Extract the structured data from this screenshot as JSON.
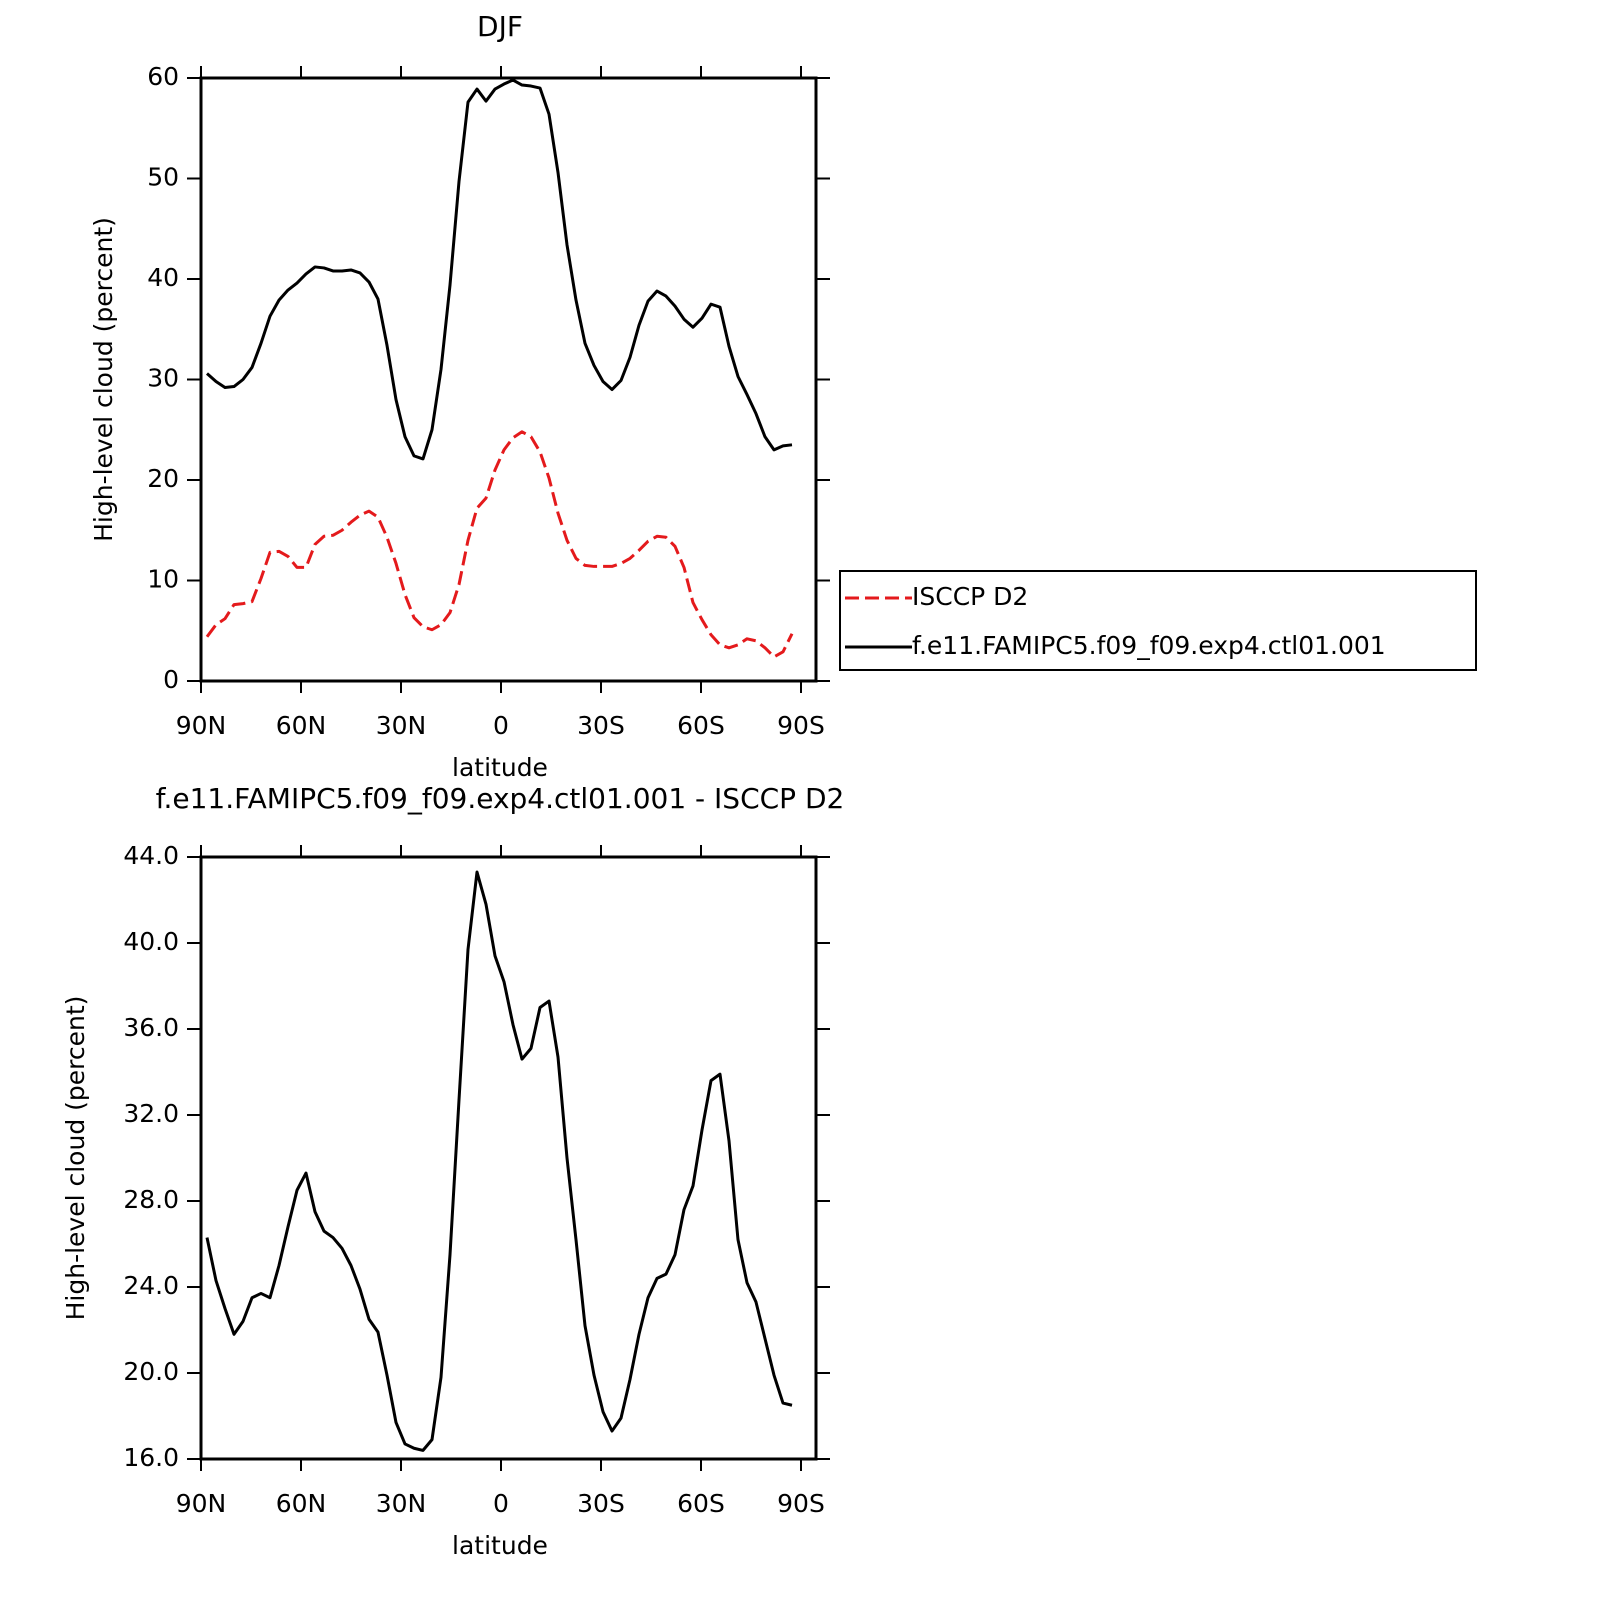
{
  "chart_data": [
    {
      "type": "line",
      "title": "DJF",
      "xlabel": "latitude",
      "ylabel": "High-level cloud (percent)",
      "x": [
        88.2,
        85.5,
        82.8,
        80.1,
        77.4,
        74.7,
        72,
        69.3,
        66.6,
        63.9,
        61.2,
        58.5,
        55.8,
        53.1,
        50.4,
        47.7,
        45,
        42.3,
        39.6,
        36.9,
        34.2,
        31.5,
        28.8,
        26.1,
        23.4,
        20.7,
        18,
        15.3,
        12.6,
        9.9,
        7.2,
        4.5,
        1.8,
        -0.9,
        -3.6,
        -6.3,
        -9,
        -11.7,
        -14.4,
        -17.1,
        -19.8,
        -22.5,
        -25.2,
        -27.9,
        -30.6,
        -33.3,
        -36,
        -38.7,
        -41.4,
        -44.1,
        -46.8,
        -49.5,
        -52.2,
        -54.9,
        -57.6,
        -60.3,
        -63,
        -65.7,
        -68.4,
        -71.1,
        -73.8,
        -76.5,
        -79.2,
        -81.9,
        -84.6,
        -87.3
      ],
      "series": [
        {
          "name": "ISCCP D2",
          "color": "#e41a1c",
          "line_style": "dashed",
          "values": [
            4.4,
            5.6,
            6.2,
            7.6,
            7.7,
            7.9,
            10.2,
            12.8,
            12.9,
            12.4,
            11.3,
            11.3,
            13.6,
            14.4,
            14.5,
            15.0,
            15.8,
            16.5,
            16.9,
            16.3,
            14.3,
            11.7,
            8.6,
            6.3,
            5.4,
            5.1,
            5.6,
            6.8,
            9.6,
            14.0,
            17.2,
            18.2,
            21.0,
            23.0,
            24.2,
            24.8,
            24.3,
            22.8,
            20.2,
            16.7,
            14.0,
            12.2,
            11.5,
            11.4,
            11.4,
            11.4,
            11.7,
            12.2,
            13.0,
            13.9,
            14.4,
            14.3,
            13.4,
            11.3,
            7.8,
            6.1,
            4.6,
            3.6,
            3.3,
            3.6,
            4.2,
            4.0,
            3.3,
            2.4,
            2.9,
            4.7
          ]
        },
        {
          "name": "f.e11.FAMIPC5.f09_f09.exp4.ctl01.001",
          "color": "#000000",
          "line_style": "solid",
          "values": [
            30.6,
            29.8,
            29.2,
            29.3,
            30.0,
            31.2,
            33.6,
            36.3,
            37.9,
            38.9,
            39.6,
            40.5,
            41.2,
            41.1,
            40.8,
            40.8,
            40.9,
            40.6,
            39.7,
            38.0,
            33.4,
            28.0,
            24.3,
            22.4,
            22.1,
            25.0,
            31.0,
            39.4,
            49.7,
            57.6,
            58.9,
            57.7,
            58.9,
            59.4,
            59.8,
            59.3,
            59.2,
            59.0,
            56.4,
            50.6,
            43.4,
            37.9,
            33.6,
            31.4,
            29.8,
            29.0,
            29.9,
            32.2,
            35.4,
            37.8,
            38.8,
            38.3,
            37.3,
            36.0,
            35.2,
            36.1,
            37.5,
            37.2,
            33.3,
            30.3,
            28.5,
            26.6,
            24.3,
            23.0,
            23.4,
            23.5
          ]
        }
      ],
      "xlim": [
        90,
        -94.5
      ],
      "xticks": [
        {
          "value": 90,
          "label": "90N"
        },
        {
          "value": 60,
          "label": "60N"
        },
        {
          "value": 30,
          "label": "30N"
        },
        0,
        {
          "value": -30,
          "label": "30S"
        },
        {
          "value": -60,
          "label": "60S"
        },
        {
          "value": -90,
          "label": "90S"
        }
      ],
      "ylim": [
        0,
        60
      ],
      "yticks": [
        0,
        10,
        20,
        30,
        40,
        50,
        60
      ],
      "legend": "right"
    },
    {
      "type": "line",
      "title": "f.e11.FAMIPC5.f09_f09.exp4.ctl01.001 - ISCCP D2",
      "xlabel": "latitude",
      "ylabel": "High-level cloud (percent)",
      "x": [
        88.2,
        85.5,
        82.8,
        80.1,
        77.4,
        74.7,
        72,
        69.3,
        66.6,
        63.9,
        61.2,
        58.5,
        55.8,
        53.1,
        50.4,
        47.7,
        45,
        42.3,
        39.6,
        36.9,
        34.2,
        31.5,
        28.8,
        26.1,
        23.4,
        20.7,
        18,
        15.3,
        12.6,
        9.9,
        7.2,
        4.5,
        1.8,
        -0.9,
        -3.6,
        -6.3,
        -9,
        -11.7,
        -14.4,
        -17.1,
        -19.8,
        -22.5,
        -25.2,
        -27.9,
        -30.6,
        -33.3,
        -36,
        -38.7,
        -41.4,
        -44.1,
        -46.8,
        -49.5,
        -52.2,
        -54.9,
        -57.6,
        -60.3,
        -63,
        -65.7,
        -68.4,
        -71.1,
        -73.8,
        -76.5,
        -79.2,
        -81.9,
        -84.6,
        -87.3
      ],
      "series": [
        {
          "color": "#000000",
          "line_style": "solid",
          "values": [
            26.3,
            24.3,
            23.0,
            21.8,
            22.4,
            23.5,
            23.7,
            23.5,
            25.0,
            26.8,
            28.5,
            29.3,
            27.5,
            26.6,
            26.3,
            25.8,
            25.0,
            23.9,
            22.5,
            21.9,
            19.9,
            17.7,
            16.7,
            16.5,
            16.4,
            16.9,
            19.8,
            25.5,
            32.7,
            39.7,
            43.3,
            41.8,
            39.4,
            38.2,
            36.2,
            34.6,
            35.1,
            37.0,
            37.3,
            34.7,
            30.0,
            26.2,
            22.2,
            19.9,
            18.2,
            17.3,
            17.9,
            19.7,
            21.8,
            23.5,
            24.4,
            24.6,
            25.5,
            27.6,
            28.7,
            31.3,
            33.6,
            33.9,
            30.8,
            26.2,
            24.2,
            23.3,
            21.6,
            19.9,
            18.6,
            18.5
          ]
        }
      ],
      "xlim": [
        90,
        -94.5
      ],
      "xticks": [
        {
          "value": 90,
          "label": "90N"
        },
        {
          "value": 60,
          "label": "60N"
        },
        {
          "value": 30,
          "label": "30N"
        },
        0,
        {
          "value": -30,
          "label": "30S"
        },
        {
          "value": -60,
          "label": "60S"
        },
        {
          "value": -90,
          "label": "90S"
        }
      ],
      "ylim": [
        16,
        44
      ],
      "yticks": [
        {
          "value": 16,
          "label": "16.0"
        },
        {
          "value": 20,
          "label": "20.0"
        },
        {
          "value": 24,
          "label": "24.0"
        },
        {
          "value": 28,
          "label": "28.0"
        },
        {
          "value": 32,
          "label": "32.0"
        },
        {
          "value": 36,
          "label": "36.0"
        },
        {
          "value": 40,
          "label": "40.0"
        },
        {
          "value": 44,
          "label": "44.0"
        }
      ]
    }
  ]
}
